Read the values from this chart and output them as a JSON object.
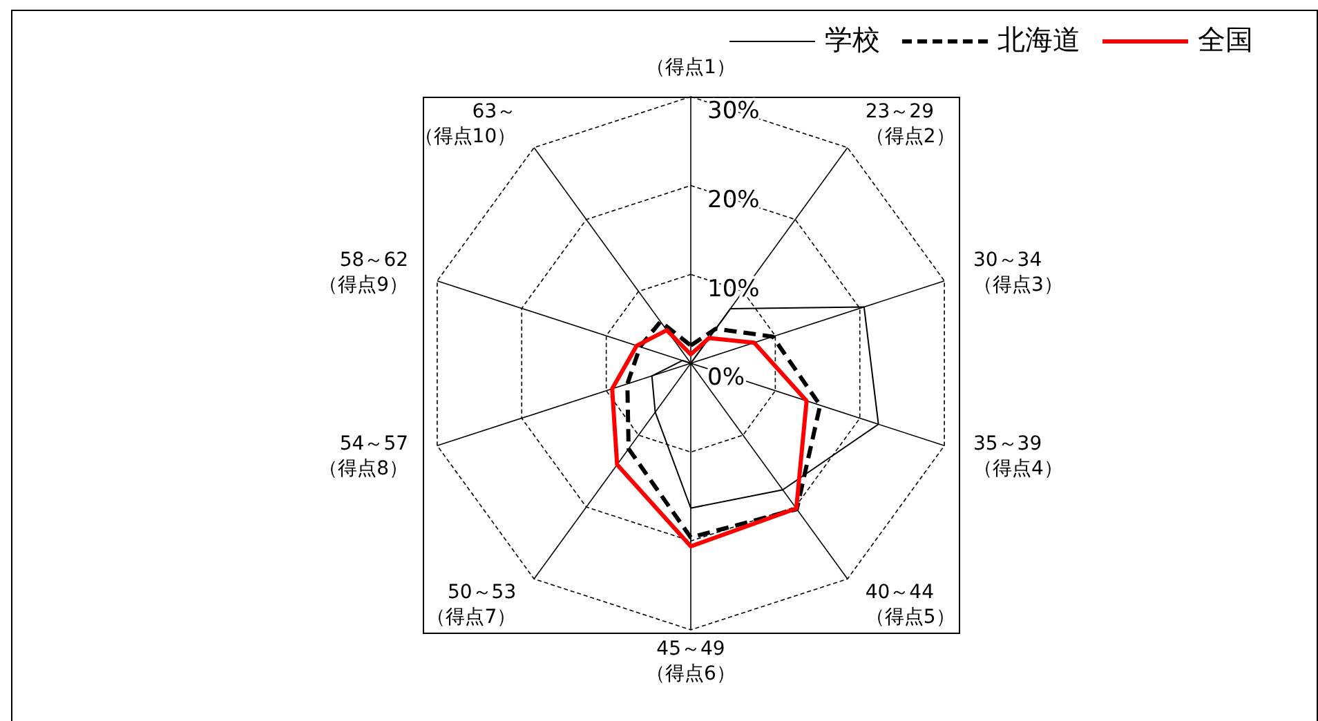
{
  "chart_data": {
    "type": "radar",
    "categories": [
      "（得点1）",
      "23～29（得点2）",
      "30～34（得点3）",
      "35～39（得点4）",
      "40～44（得点5）",
      "45～49（得点6）",
      "50～53（得点7）",
      "54～57（得点8）",
      "58～62（得点9）",
      "63～（得点10）"
    ],
    "series": [
      {
        "name": "学校",
        "color": "#000000",
        "line_style": "solid",
        "values": [
          0,
          7.6,
          20.5,
          22.2,
          17.6,
          16.3,
          6.8,
          4.6,
          1.0,
          0
        ]
      },
      {
        "name": "北海道",
        "color": "#000000",
        "line_style": "dashed",
        "values": [
          2.0,
          4.8,
          9.7,
          15.3,
          20.3,
          19.6,
          11.9,
          7.5,
          6.0,
          5.8
        ]
      },
      {
        "name": "全国",
        "color": "#ff0000",
        "line_style": "solid",
        "values": [
          1.0,
          3.5,
          7.5,
          13.7,
          20.2,
          20.6,
          14.1,
          9.3,
          6.4,
          4.6
        ]
      }
    ],
    "ylim": [
      0,
      30
    ],
    "yticks": [
      {
        "value": 0,
        "label": "0%"
      },
      {
        "value": 10,
        "label": "10%"
      },
      {
        "value": 20,
        "label": "20%"
      },
      {
        "value": 30,
        "label": "30%"
      }
    ],
    "grid": true,
    "legend": "top right"
  }
}
